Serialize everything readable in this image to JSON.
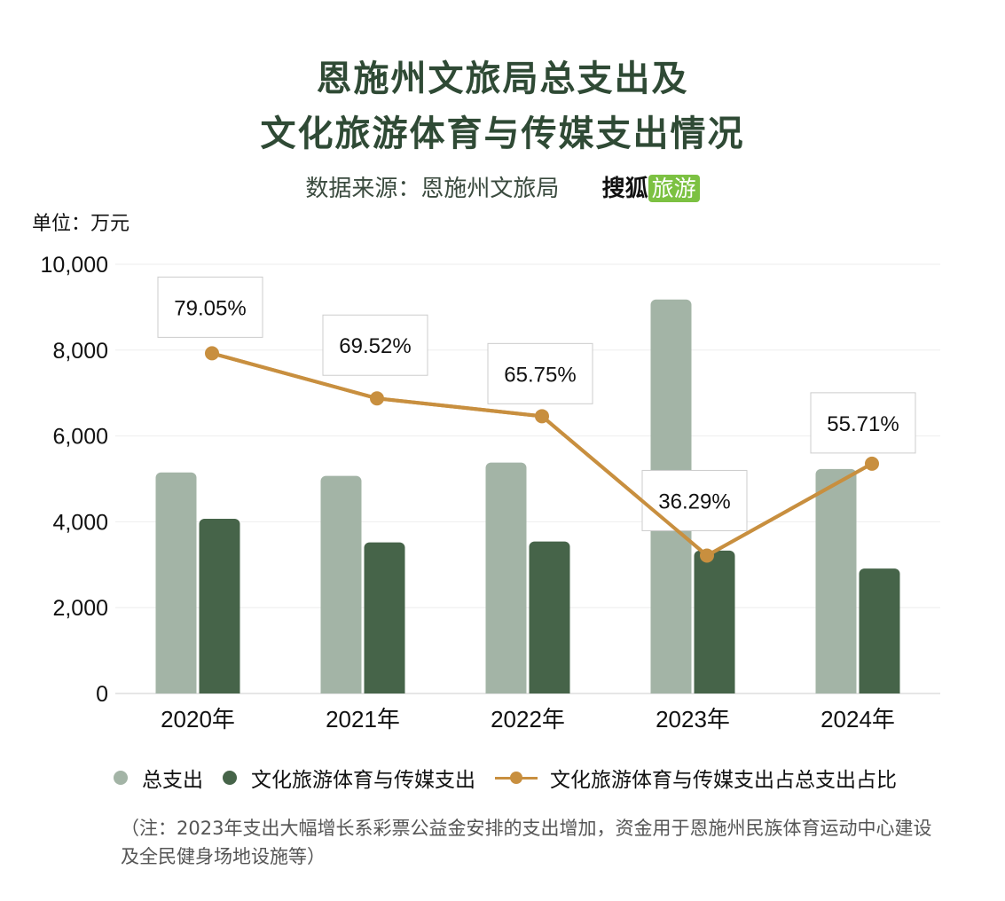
{
  "title_line1": "恩施州文旅局总支出及",
  "title_line2": "文化旅游体育与传媒支出情况",
  "source": "数据来源：恩施州文旅局",
  "brand_name": "搜狐",
  "brand_tag": "旅游",
  "unit": "单位：万元",
  "legend": {
    "total": "总支出",
    "culture": "文化旅游体育与传媒支出",
    "ratio": "文化旅游体育与传媒支出占总支出占比"
  },
  "note": "（注：2023年支出大幅增长系彩票公益金安排的支出增加，资金用于恩施州民族体育运动中心建设及全民健身场地设施等）",
  "colors": {
    "total": "#a3b4a6",
    "culture": "#466449",
    "line": "#c88f3f",
    "title": "#2f4a35"
  },
  "chart_data": {
    "type": "bar",
    "categories": [
      "2020年",
      "2021年",
      "2022年",
      "2023年",
      "2024年"
    ],
    "ylim": [
      0,
      10000
    ],
    "yticks": [
      "0",
      "2,000",
      "4,000",
      "6,000",
      "8,000",
      "10,000"
    ],
    "grid": true,
    "series": [
      {
        "name": "总支出",
        "type": "bar",
        "values": [
          5150,
          5070,
          5380,
          9180,
          5230
        ]
      },
      {
        "name": "文化旅游体育与传媒支出",
        "type": "bar",
        "values": [
          4070,
          3520,
          3540,
          3330,
          2910
        ]
      },
      {
        "name": "文化旅游体育与传媒支出占总支出占比",
        "type": "line",
        "values": [
          79.05,
          69.52,
          65.75,
          36.29,
          55.71
        ],
        "labels": [
          "79.05%",
          "69.52%",
          "65.75%",
          "36.29%",
          "55.71%"
        ]
      }
    ],
    "legend_position": "bottom"
  }
}
